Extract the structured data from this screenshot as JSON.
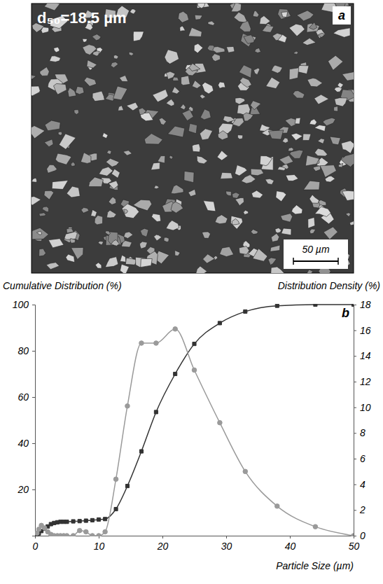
{
  "panel_a": {
    "label": "a",
    "annotation": "d₅₀=18.5 µm",
    "scale_bar": "50 µm"
  },
  "chart_data": {
    "type": "line",
    "annotations": [
      "b"
    ],
    "x_label": "Particle Size (µm)",
    "y_label": "Cumulative Distribution (%)",
    "y2_label": "Distribution Density (%)",
    "x": [
      0.3,
      0.6,
      1,
      1.5,
      2,
      2.5,
      3,
      3.5,
      4,
      4.5,
      5,
      6,
      7,
      8,
      9,
      10,
      11,
      12.7,
      14.5,
      16.7,
      19,
      22,
      25,
      29,
      33,
      38,
      44,
      50
    ],
    "series": [
      {
        "color": "#333333",
        "marker": "square",
        "line_style": "solid",
        "values": [
          0.5,
          1,
          2,
          3,
          4,
          5,
          5.5,
          5.8,
          6,
          6,
          6,
          6.2,
          6.3,
          6.5,
          6.7,
          7,
          7.2,
          11.5,
          21.5,
          36.5,
          53.5,
          70,
          83,
          92,
          97,
          99.5,
          100,
          100
        ]
      },
      {
        "color": "#9a9a9a",
        "marker": "circle",
        "line_style": "solid",
        "axis": "y2",
        "values": [
          0.2,
          0.5,
          0.8,
          0.6,
          0.3,
          0.1,
          0,
          0,
          0,
          0,
          0,
          0,
          0.4,
          0.3,
          0,
          0,
          0.3,
          4.4,
          10.1,
          15,
          15,
          16.1,
          12.9,
          8.8,
          5,
          2.3,
          0.7,
          0
        ]
      }
    ],
    "xlim": [
      0,
      50
    ],
    "xticks": [
      0,
      10,
      20,
      30,
      40,
      50
    ],
    "ylim": [
      0,
      100
    ],
    "yticks": [
      20,
      40,
      60,
      80,
      100
    ],
    "y2lim": [
      0,
      18
    ],
    "y2ticks": [
      0,
      2,
      4,
      6,
      8,
      10,
      12,
      14,
      16,
      18
    ],
    "grid": false
  }
}
